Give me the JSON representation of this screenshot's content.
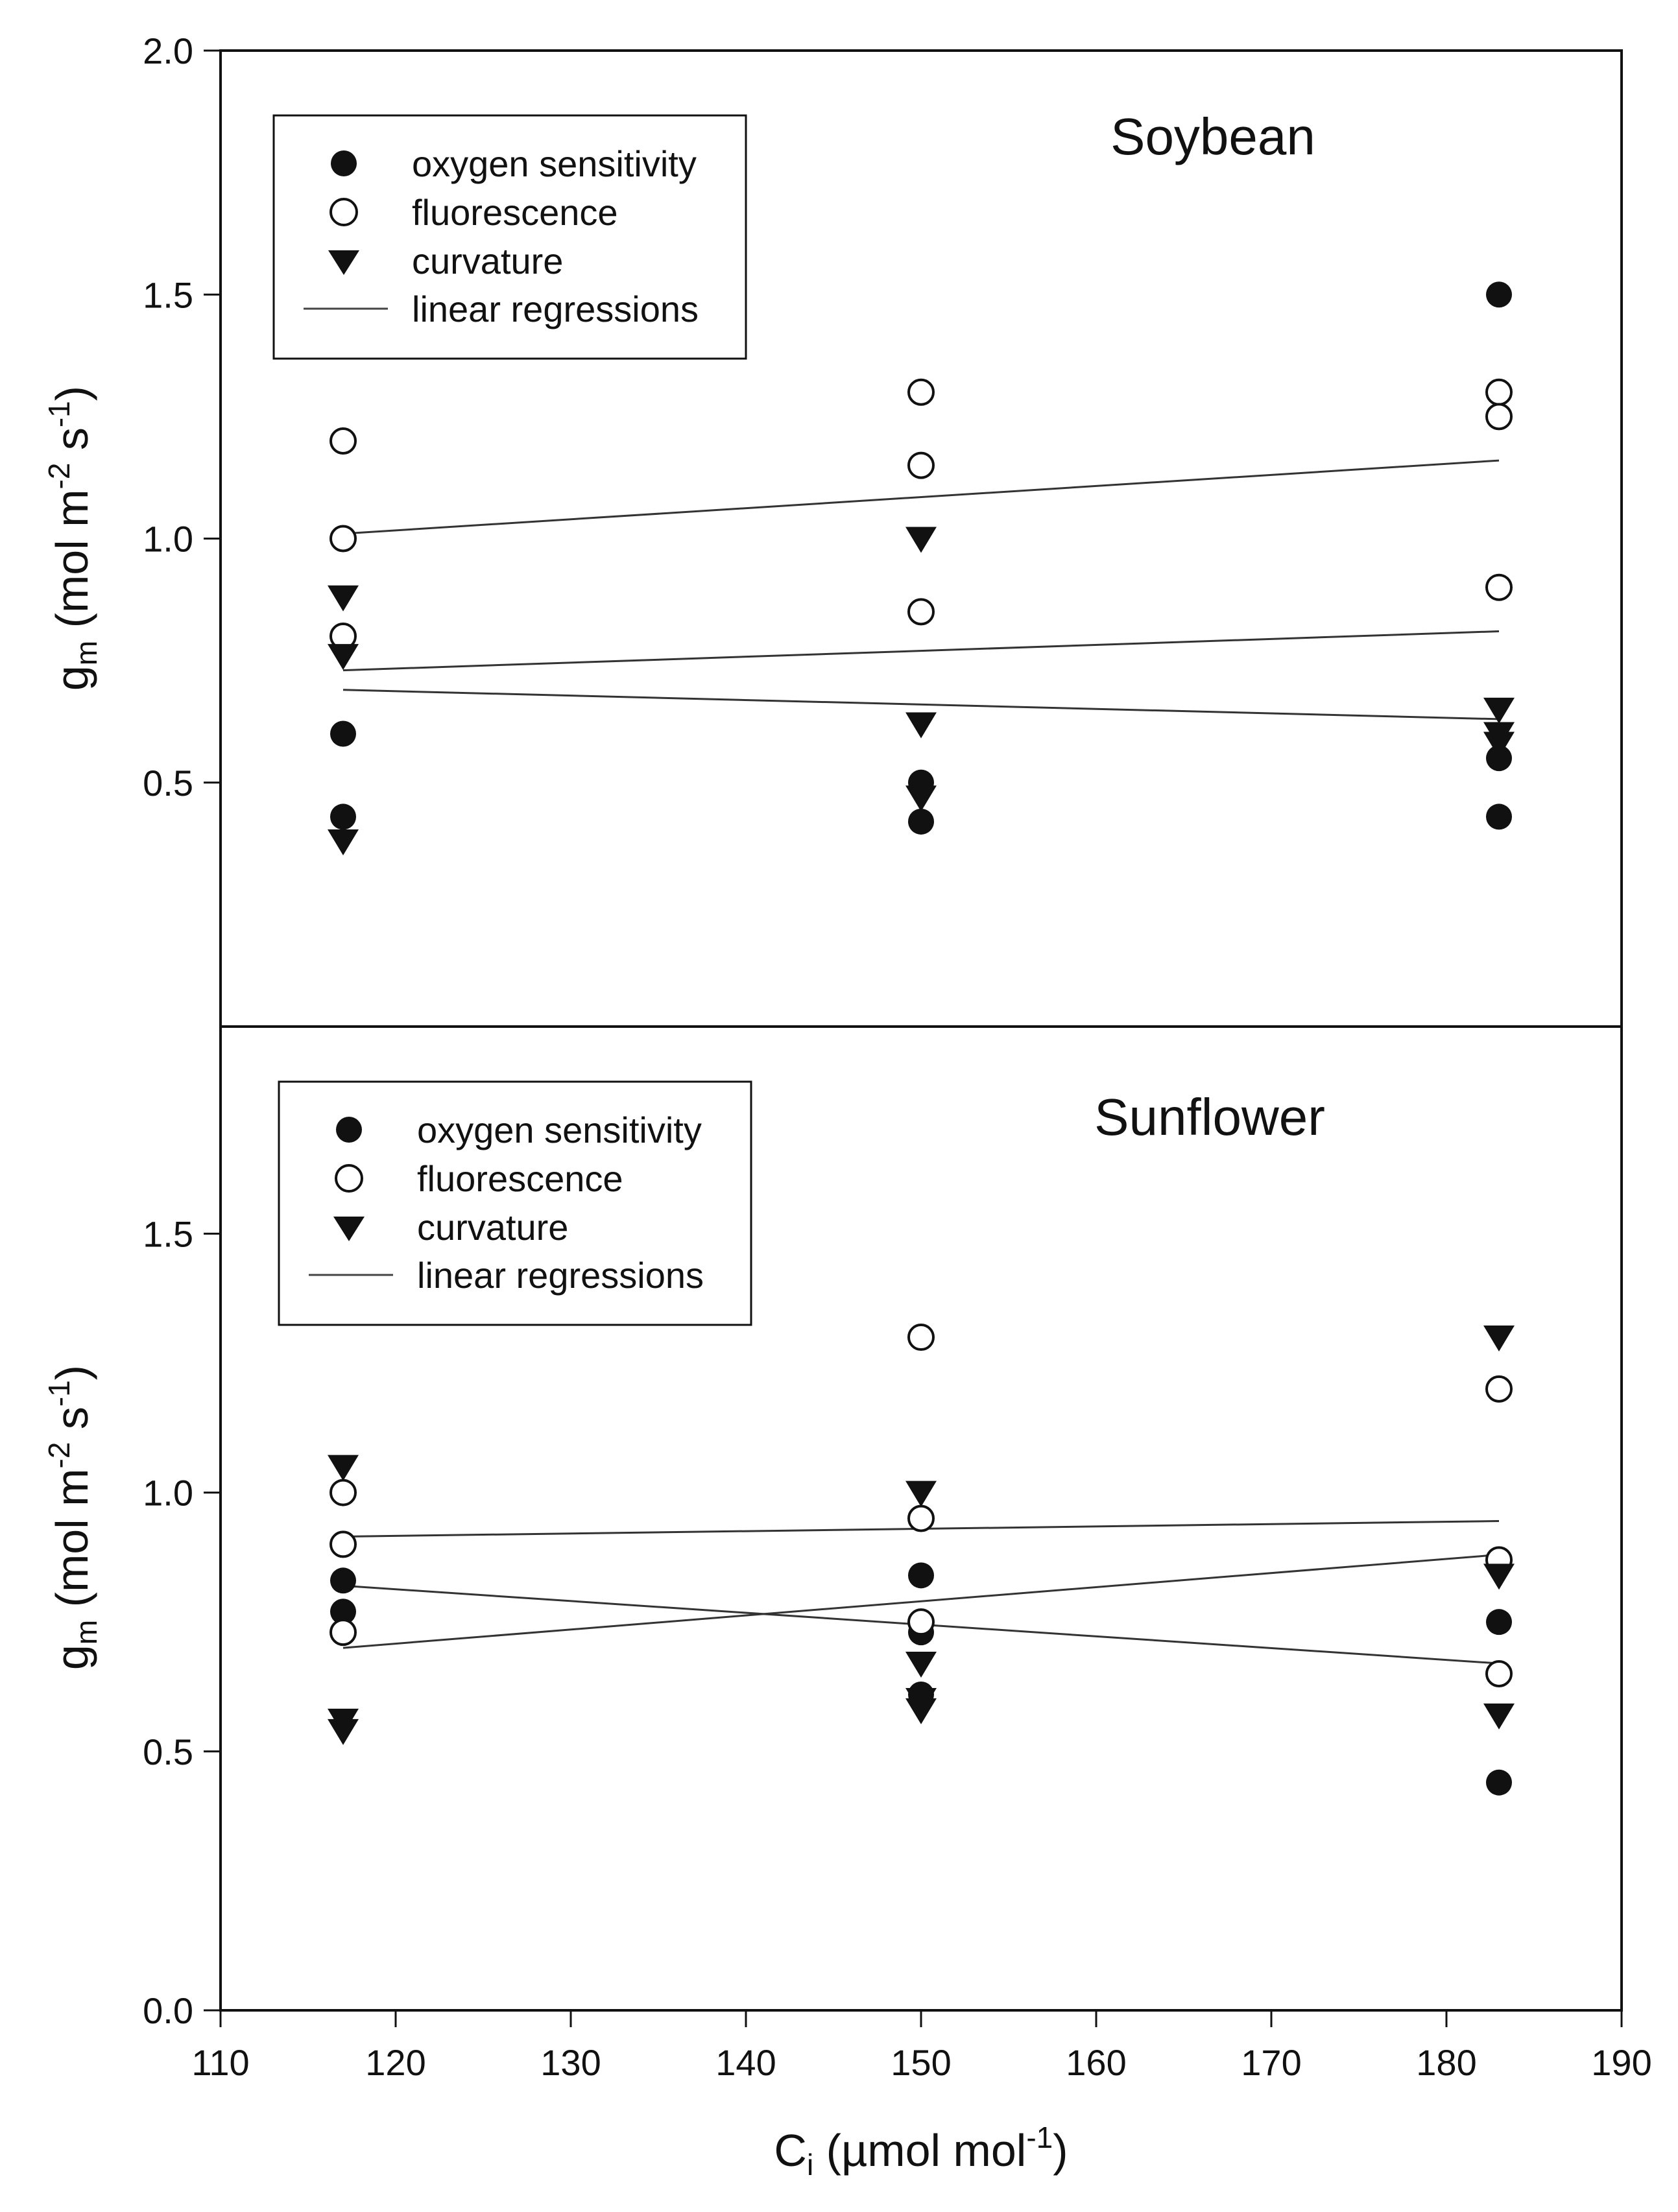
{
  "chart_data": [
    {
      "type": "scatter",
      "title": "Soybean",
      "xlabel": "C_i (µmol mol^-1)",
      "ylabel": "g_m (mol m^-2 s^-1)",
      "xlim": [
        110,
        190
      ],
      "ylim": [
        0.0,
        2.0
      ],
      "yticks": [
        "0.5",
        "1.0",
        "1.5",
        "2.0"
      ],
      "grid": false,
      "legend_position": "top-left",
      "legend": [
        "oxygen sensitivity",
        "fluorescence",
        "curvature",
        "linear regressions"
      ],
      "series": [
        {
          "name": "oxygen sensitivity",
          "marker": "filled-circle",
          "points": [
            [
              117,
              0.6
            ],
            [
              117,
              0.43
            ],
            [
              150,
              0.5
            ],
            [
              150,
              0.42
            ],
            [
              183,
              1.5
            ],
            [
              183,
              0.55
            ],
            [
              183,
              0.43
            ]
          ]
        },
        {
          "name": "fluorescence",
          "marker": "open-circle",
          "points": [
            [
              117,
              1.2
            ],
            [
              117,
              1.0
            ],
            [
              117,
              0.8
            ],
            [
              150,
              1.3
            ],
            [
              150,
              1.15
            ],
            [
              150,
              0.85
            ],
            [
              183,
              1.3
            ],
            [
              183,
              1.25
            ],
            [
              183,
              0.9
            ]
          ]
        },
        {
          "name": "curvature",
          "marker": "filled-triangle-down",
          "points": [
            [
              117,
              0.88
            ],
            [
              117,
              0.76
            ],
            [
              117,
              0.38
            ],
            [
              150,
              1.0
            ],
            [
              150,
              0.62
            ],
            [
              150,
              0.47
            ],
            [
              183,
              0.65
            ],
            [
              183,
              0.6
            ],
            [
              183,
              0.58
            ]
          ]
        }
      ],
      "regressions": [
        {
          "name": "fluorescence fit",
          "x": [
            117,
            183
          ],
          "y": [
            1.01,
            1.16
          ]
        },
        {
          "name": "oxygen sensitivity fit",
          "x": [
            117,
            183
          ],
          "y": [
            0.73,
            0.81
          ]
        },
        {
          "name": "curvature fit",
          "x": [
            117,
            183
          ],
          "y": [
            0.69,
            0.63
          ]
        }
      ]
    },
    {
      "type": "scatter",
      "title": "Sunflower",
      "xlabel": "C_i (µmol mol^-1)",
      "ylabel": "g_m (mol m^-2 s^-1)",
      "xlim": [
        110,
        190
      ],
      "xticks": [
        "110",
        "120",
        "130",
        "140",
        "150",
        "160",
        "170",
        "180",
        "190"
      ],
      "ylim": [
        0.0,
        1.9
      ],
      "yticks": [
        "0.0",
        "0.5",
        "1.0",
        "1.5"
      ],
      "grid": false,
      "legend_position": "top-left",
      "legend": [
        "oxygen sensitivity",
        "fluorescence",
        "curvature",
        "linear regressions"
      ],
      "series": [
        {
          "name": "oxygen sensitivity",
          "marker": "filled-circle",
          "points": [
            [
              117,
              0.83
            ],
            [
              117,
              0.77
            ],
            [
              150,
              0.84
            ],
            [
              150,
              0.73
            ],
            [
              150,
              0.61
            ],
            [
              183,
              0.75
            ],
            [
              183,
              0.44
            ]
          ]
        },
        {
          "name": "fluorescence",
          "marker": "open-circle",
          "points": [
            [
              117,
              1.0
            ],
            [
              117,
              0.9
            ],
            [
              117,
              0.73
            ],
            [
              150,
              1.3
            ],
            [
              150,
              0.95
            ],
            [
              150,
              0.75
            ],
            [
              183,
              1.2
            ],
            [
              183,
              0.87
            ],
            [
              183,
              0.65
            ]
          ]
        },
        {
          "name": "curvature",
          "marker": "filled-triangle-down",
          "points": [
            [
              117,
              1.05
            ],
            [
              117,
              0.56
            ],
            [
              117,
              0.54
            ],
            [
              150,
              1.0
            ],
            [
              150,
              0.67
            ],
            [
              150,
              0.6
            ],
            [
              150,
              0.58
            ],
            [
              183,
              1.3
            ],
            [
              183,
              0.84
            ],
            [
              183,
              0.57
            ]
          ]
        }
      ],
      "regressions": [
        {
          "name": "fluorescence fit",
          "x": [
            117,
            183
          ],
          "y": [
            0.915,
            0.945
          ]
        },
        {
          "name": "oxygen sensitivity fit",
          "x": [
            117,
            183
          ],
          "y": [
            0.82,
            0.67
          ]
        },
        {
          "name": "curvature fit",
          "x": [
            117,
            183
          ],
          "y": [
            0.7,
            0.88
          ]
        }
      ]
    }
  ]
}
